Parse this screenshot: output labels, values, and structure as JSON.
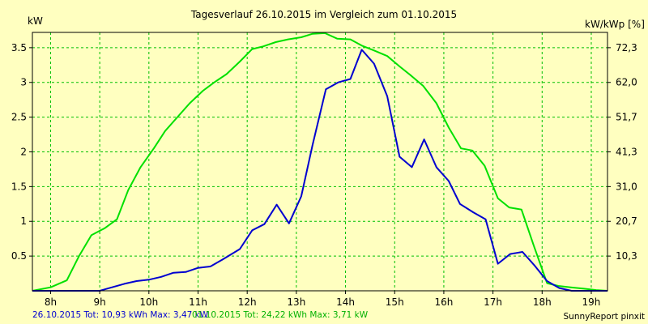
{
  "chart_data": {
    "type": "line",
    "title": "Tagesverlauf 26.10.2015 im Vergleich zum 01.10.2015",
    "ylabel": "kW",
    "ylabel_right": "kW/kWp [%]",
    "xlim": [
      7.63,
      19.33
    ],
    "ylim": [
      0,
      3.72
    ],
    "grid": true,
    "x_ticks": [
      8,
      9,
      10,
      11,
      12,
      13,
      14,
      15,
      16,
      17,
      18,
      19
    ],
    "x_tick_labels": [
      "8h",
      "9h",
      "10h",
      "11h",
      "12h",
      "13h",
      "14h",
      "15h",
      "16h",
      "17h",
      "18h",
      "19h"
    ],
    "y_ticks": [
      0.5,
      1,
      1.5,
      2,
      2.5,
      3,
      3.5
    ],
    "y_tick_labels": [
      "0.5",
      "1",
      "1.5",
      "2",
      "2.5",
      "3",
      "3.5"
    ],
    "y2_ticks": [
      0.5,
      1,
      1.5,
      2,
      2.5,
      3,
      3.5
    ],
    "y2_tick_labels": [
      "10,3",
      "20,7",
      "31,0",
      "41,3",
      "51,7",
      "62,0",
      "72,3"
    ],
    "footer_left": "26.10.2015 Tot: 10,93 kWh Max: 3,47 kW",
    "footer_mid": "01.10.2015 Tot: 24,22 kWh Max: 3,71 kW",
    "footer_right": "SunnyReport pinxit",
    "series": [
      {
        "name": "01.10.2015",
        "color": "#00e000",
        "x": [
          7.63,
          8.0,
          8.33,
          8.58,
          8.83,
          9.1,
          9.35,
          9.58,
          9.83,
          10.1,
          10.33,
          10.58,
          10.83,
          11.1,
          11.33,
          11.58,
          11.85,
          12.1,
          12.33,
          12.58,
          12.83,
          13.1,
          13.33,
          13.58,
          13.83,
          14.1,
          14.33,
          14.58,
          14.85,
          15.1,
          15.33,
          15.58,
          15.85,
          16.1,
          16.35,
          16.58,
          16.83,
          17.1,
          17.33,
          17.58,
          17.83,
          18.1,
          18.33,
          18.58,
          18.85,
          19.1,
          19.33
        ],
        "values": [
          0.0,
          0.05,
          0.15,
          0.5,
          0.8,
          0.9,
          1.03,
          1.45,
          1.78,
          2.05,
          2.3,
          2.5,
          2.7,
          2.88,
          3.0,
          3.12,
          3.3,
          3.48,
          3.52,
          3.58,
          3.62,
          3.65,
          3.7,
          3.71,
          3.63,
          3.62,
          3.53,
          3.46,
          3.38,
          3.23,
          3.1,
          2.95,
          2.7,
          2.35,
          2.05,
          2.02,
          1.8,
          1.33,
          1.2,
          1.17,
          0.65,
          0.11,
          0.07,
          0.05,
          0.03,
          0.01,
          0.0
        ]
      },
      {
        "name": "26.10.2015",
        "color": "#0000d0",
        "x": [
          7.63,
          8.0,
          8.25,
          8.5,
          8.75,
          9.0,
          9.25,
          9.5,
          9.75,
          10.0,
          10.25,
          10.5,
          10.75,
          11.0,
          11.25,
          11.5,
          11.85,
          12.1,
          12.35,
          12.6,
          12.85,
          13.1,
          13.33,
          13.6,
          13.85,
          14.1,
          14.33,
          14.58,
          14.85,
          15.1,
          15.35,
          15.6,
          15.85,
          16.1,
          16.33,
          16.6,
          16.85,
          17.1,
          17.35,
          17.6,
          17.85,
          18.1,
          18.35,
          18.6,
          18.85,
          19.1,
          19.33
        ],
        "values": [
          0.0,
          0.0,
          0.0,
          0.0,
          0.0,
          0.0,
          0.05,
          0.1,
          0.14,
          0.16,
          0.2,
          0.26,
          0.27,
          0.33,
          0.35,
          0.45,
          0.6,
          0.87,
          0.96,
          1.24,
          0.97,
          1.36,
          2.1,
          2.9,
          3.0,
          3.05,
          3.47,
          3.27,
          2.8,
          1.93,
          1.78,
          2.18,
          1.78,
          1.58,
          1.25,
          1.13,
          1.03,
          0.39,
          0.53,
          0.56,
          0.36,
          0.14,
          0.04,
          0.0,
          0.0,
          0.0,
          0.0
        ]
      }
    ]
  }
}
